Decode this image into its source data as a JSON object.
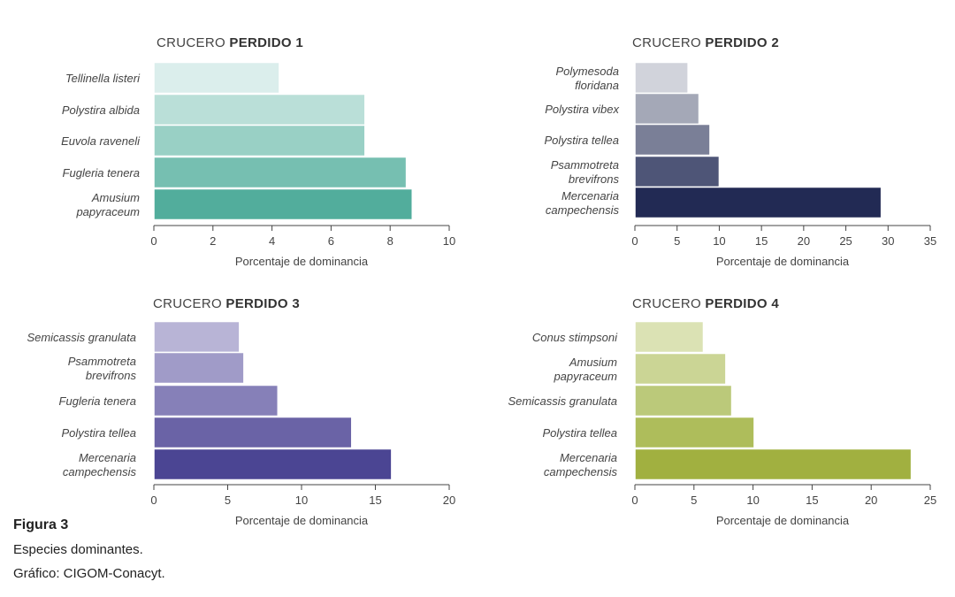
{
  "caption": {
    "figure_label": "Figura 3",
    "description": "Especies dominantes.",
    "credit": "Gráfico: CIGOM-Conacyt."
  },
  "chart_data": [
    {
      "type": "bar",
      "orientation": "horizontal",
      "title_prefix": "CRUCERO ",
      "title_bold": "PERDIDO 1",
      "categories": [
        [
          "Tellinella listeri"
        ],
        [
          "Polystira albida"
        ],
        [
          "Euvola raveneli"
        ],
        [
          "Fugleria tenera"
        ],
        [
          "Amusium",
          "papyraceum"
        ]
      ],
      "values": [
        4.25,
        7.15,
        7.15,
        8.55,
        8.75
      ],
      "colors": [
        "#dbeeec",
        "#badfd8",
        "#99d0c5",
        "#76bfb1",
        "#52ad9c"
      ],
      "xlim": [
        0,
        10
      ],
      "xticks": [
        0,
        2,
        4,
        6,
        8,
        10
      ],
      "xlabel": "Porcentaje de dominancia"
    },
    {
      "type": "bar",
      "orientation": "horizontal",
      "title_prefix": "CRUCERO ",
      "title_bold": "PERDIDO 2",
      "categories": [
        [
          "Polymesoda",
          "floridana"
        ],
        [
          "Polystira vibex"
        ],
        [
          "Polystira tellea"
        ],
        [
          "Psammotreta",
          "brevifrons"
        ],
        [
          "Mercenaria",
          "campechensis"
        ]
      ],
      "values": [
        6.3,
        7.6,
        8.9,
        10.0,
        29.2
      ],
      "colors": [
        "#d1d3db",
        "#a4a8b7",
        "#7a7f97",
        "#4e5577",
        "#222a54"
      ],
      "xlim": [
        0,
        35
      ],
      "xticks": [
        0,
        5,
        10,
        15,
        20,
        25,
        30,
        35
      ],
      "xlabel": "Porcentaje de dominancia"
    },
    {
      "type": "bar",
      "orientation": "horizontal",
      "title_prefix": "CRUCERO ",
      "title_bold": "PERDIDO 3",
      "categories": [
        [
          "Semicassis granulata"
        ],
        [
          "Psammotreta",
          "brevifrons"
        ],
        [
          "Fugleria tenera"
        ],
        [
          "Polystira tellea"
        ],
        [
          "Mercenaria",
          "campechensis"
        ]
      ],
      "values": [
        5.8,
        6.1,
        8.4,
        13.4,
        16.1
      ],
      "colors": [
        "#b8b4d6",
        "#a09bc8",
        "#8680b8",
        "#6a63a6",
        "#4b4593"
      ],
      "xlim": [
        0,
        20
      ],
      "xticks": [
        0,
        5,
        10,
        15,
        20
      ],
      "xlabel": "Porcentaje de dominancia"
    },
    {
      "type": "bar",
      "orientation": "horizontal",
      "title_prefix": "CRUCERO ",
      "title_bold": "PERDIDO 4",
      "categories": [
        [
          "Conus stimpsoni"
        ],
        [
          "Amusium",
          "papyraceum"
        ],
        [
          "Semicassis granulata"
        ],
        [
          "Polystira tellea"
        ],
        [
          "Mercenaria",
          "campechensis"
        ]
      ],
      "values": [
        5.8,
        7.7,
        8.2,
        10.1,
        23.4
      ],
      "colors": [
        "#dbe2b4",
        "#cbd595",
        "#bbc97a",
        "#aebd5b",
        "#a1b040"
      ],
      "xlim": [
        0,
        25
      ],
      "xticks": [
        0,
        5,
        10,
        15,
        20,
        25
      ],
      "xlabel": "Porcentaje de dominancia"
    }
  ]
}
